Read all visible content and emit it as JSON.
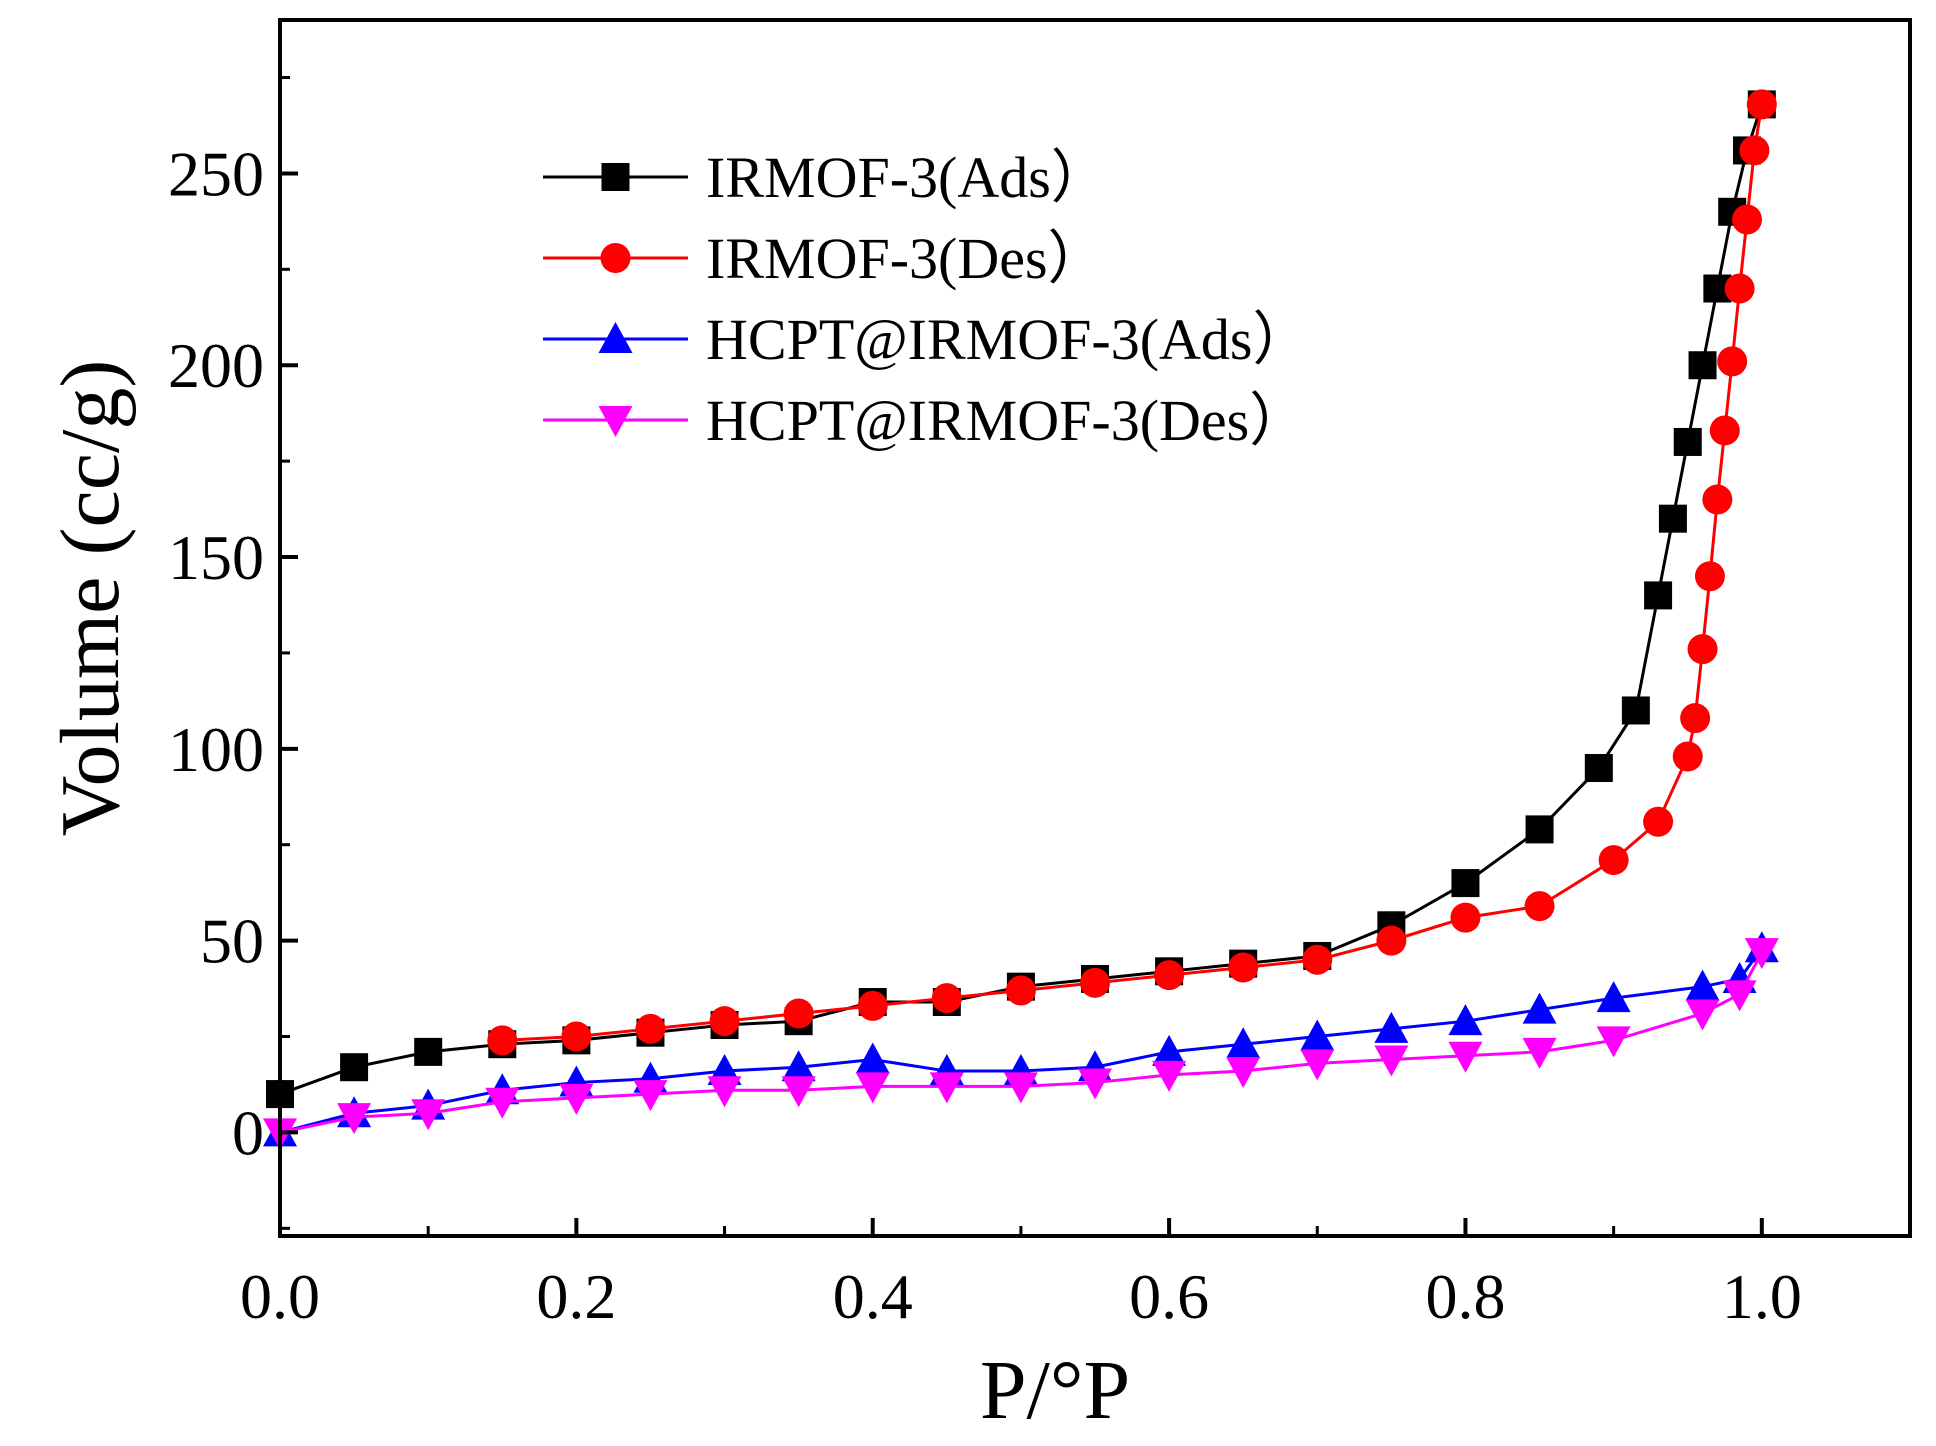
{
  "chart_data": {
    "type": "line",
    "title": "",
    "xlabel": "P/°P",
    "ylabel": "Volume (cc/g)",
    "xlim": [
      0.0,
      1.1
    ],
    "ylim": [
      -27,
      290
    ],
    "xticks": [
      "0.0",
      "0.2",
      "0.4",
      "0.6",
      "0.8",
      "1.0"
    ],
    "xtick_values": [
      0.0,
      0.2,
      0.4,
      0.6,
      0.8,
      1.0
    ],
    "yticks": [
      "0",
      "50",
      "100",
      "150",
      "200",
      "250"
    ],
    "ytick_values": [
      0,
      50,
      100,
      150,
      200,
      250
    ],
    "grid": false,
    "legend_position": "top-left",
    "series": [
      {
        "name": "IRMOF-3(Ads）",
        "color": "#000000",
        "marker": "square",
        "x": [
          0.0,
          0.05,
          0.1,
          0.15,
          0.2,
          0.25,
          0.3,
          0.35,
          0.4,
          0.45,
          0.5,
          0.55,
          0.6,
          0.65,
          0.7,
          0.75,
          0.8,
          0.85,
          0.89,
          0.915,
          0.93,
          0.94,
          0.95,
          0.96,
          0.97,
          0.98,
          0.99,
          1.0
        ],
        "y": [
          10,
          17,
          21,
          23,
          24,
          26,
          28,
          29,
          34,
          34,
          38,
          40,
          42,
          44,
          46,
          54,
          65,
          79,
          95,
          110,
          140,
          160,
          180,
          200,
          220,
          240,
          256,
          268
        ]
      },
      {
        "name": "IRMOF-3(Des）",
        "color": "#ff0000",
        "marker": "circle",
        "x": [
          0.15,
          0.2,
          0.25,
          0.3,
          0.35,
          0.4,
          0.45,
          0.5,
          0.55,
          0.6,
          0.65,
          0.7,
          0.75,
          0.8,
          0.85,
          0.9,
          0.93,
          0.95,
          0.955,
          0.96,
          0.965,
          0.97,
          0.975,
          0.98,
          0.985,
          0.99,
          0.995,
          1.0
        ],
        "y": [
          24,
          25,
          27,
          29,
          31,
          33,
          35,
          37,
          39,
          41,
          43,
          45,
          50,
          56,
          59,
          71,
          81,
          98,
          108,
          126,
          145,
          165,
          183,
          201,
          220,
          238,
          256,
          268
        ]
      },
      {
        "name": "HCPT@IRMOF-3(Ads）",
        "color": "#0000ff",
        "marker": "triangle-up",
        "x": [
          0.0,
          0.05,
          0.1,
          0.15,
          0.2,
          0.25,
          0.3,
          0.35,
          0.4,
          0.45,
          0.5,
          0.55,
          0.6,
          0.65,
          0.7,
          0.75,
          0.8,
          0.85,
          0.9,
          0.96,
          0.985,
          1.0
        ],
        "y": [
          0,
          5,
          7,
          11,
          13,
          14,
          16,
          17,
          19,
          16,
          16,
          17,
          21,
          23,
          25,
          27,
          29,
          32,
          35,
          38,
          40,
          48
        ]
      },
      {
        "name": "HCPT@IRMOF-3(Des）",
        "color": "#ff00ff",
        "marker": "triangle-down",
        "x": [
          0.0,
          0.05,
          0.1,
          0.15,
          0.2,
          0.25,
          0.3,
          0.35,
          0.4,
          0.45,
          0.5,
          0.55,
          0.6,
          0.65,
          0.7,
          0.75,
          0.8,
          0.85,
          0.9,
          0.96,
          0.985,
          1.0
        ],
        "y": [
          0,
          4,
          5,
          8,
          9,
          10,
          11,
          11,
          12,
          12,
          12,
          13,
          15,
          16,
          18,
          19,
          20,
          21,
          24,
          31,
          36,
          47
        ]
      }
    ]
  }
}
